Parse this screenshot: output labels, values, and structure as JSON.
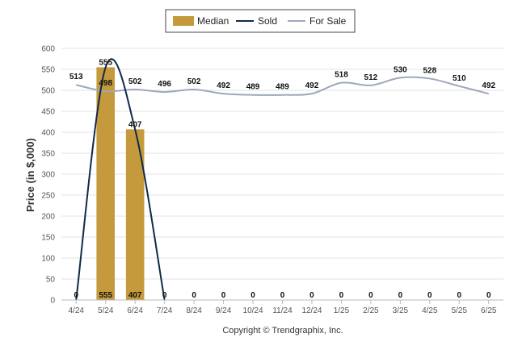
{
  "chart_data": {
    "type": "bar",
    "categories": [
      "4/24",
      "5/24",
      "6/24",
      "7/24",
      "8/24",
      "9/24",
      "10/24",
      "11/24",
      "12/24",
      "1/25",
      "2/25",
      "3/25",
      "4/25",
      "5/25",
      "6/25"
    ],
    "series": [
      {
        "name": "Median",
        "type": "bar",
        "values": [
          0,
          555,
          407,
          0,
          0,
          0,
          0,
          0,
          0,
          0,
          0,
          0,
          0,
          0,
          0
        ]
      },
      {
        "name": "Sold",
        "type": "line",
        "values": [
          0,
          555,
          407,
          0,
          0,
          0,
          0,
          0,
          0,
          0,
          0,
          0,
          0,
          0,
          0
        ]
      },
      {
        "name": "For Sale",
        "type": "line",
        "values": [
          513,
          498,
          502,
          496,
          502,
          492,
          489,
          489,
          492,
          518,
          512,
          530,
          528,
          510,
          492
        ]
      }
    ],
    "ylabel": "Price (in $,000)",
    "xlabel": "",
    "ylim": [
      0,
      600
    ],
    "yticks": [
      0,
      50,
      100,
      150,
      200,
      250,
      300,
      350,
      400,
      450,
      500,
      550,
      600
    ],
    "grid": true,
    "legend_position": "top-center",
    "colors": {
      "Median": "#C49A3C",
      "Sold": "#0F2A4A",
      "For Sale": "#9EA8BD"
    },
    "footer": "Copyright © Trendgraphix, Inc."
  }
}
